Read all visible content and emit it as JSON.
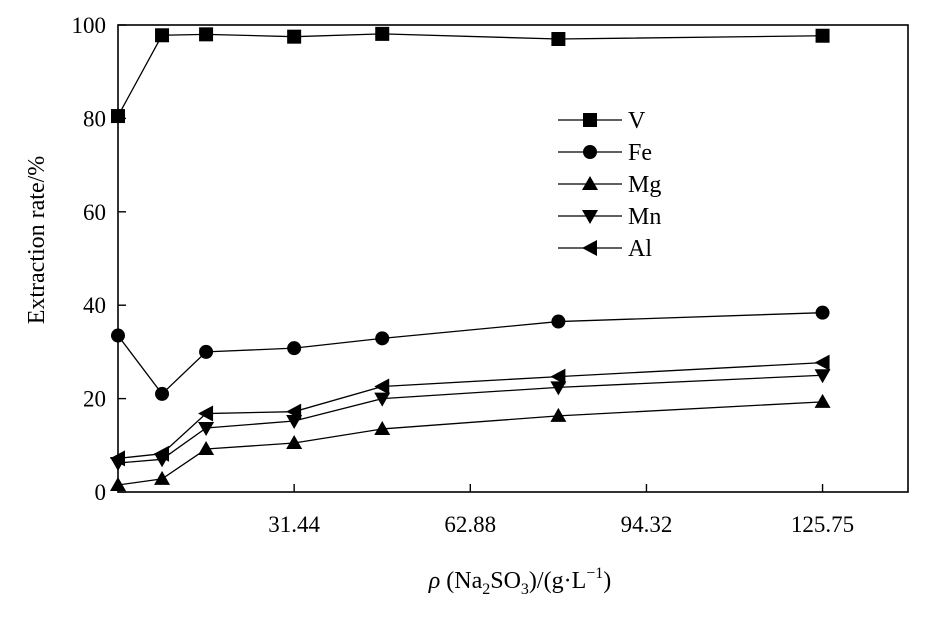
{
  "chart_data": {
    "type": "line",
    "x": [
      0,
      7.86,
      15.72,
      31.44,
      47.16,
      78.6,
      125.75
    ],
    "series": [
      {
        "name": "V",
        "marker": "square",
        "values": [
          80.5,
          97.8,
          98.0,
          97.5,
          98.1,
          97.0,
          97.7
        ]
      },
      {
        "name": "Fe",
        "marker": "circle",
        "values": [
          33.5,
          21.0,
          30.0,
          30.8,
          32.9,
          36.5,
          38.4
        ]
      },
      {
        "name": "Mg",
        "marker": "triangle-up",
        "values": [
          1.5,
          2.8,
          9.2,
          10.5,
          13.5,
          16.3,
          19.3
        ]
      },
      {
        "name": "Mn",
        "marker": "triangle-down",
        "values": [
          6.2,
          7.0,
          13.7,
          15.2,
          20.0,
          22.4,
          25.0
        ]
      },
      {
        "name": "Al",
        "marker": "triangle-left",
        "values": [
          7.2,
          8.2,
          16.8,
          17.2,
          22.6,
          24.7,
          27.7
        ]
      }
    ],
    "xticks": [
      31.44,
      62.88,
      94.32,
      125.75
    ],
    "xtick_labels": [
      "31.44",
      "62.88",
      "94.32",
      "125.75"
    ],
    "yticks": [
      0,
      20,
      40,
      60,
      80,
      100
    ],
    "ytick_labels": [
      "0",
      "20",
      "40",
      "60",
      "80",
      "100"
    ],
    "xlim": [
      0,
      141
    ],
    "ylim": [
      0,
      100
    ],
    "ylabel": "Extraction rate/%",
    "xlabel": {
      "rho": "ρ",
      "open": " (Na",
      "sub1": "2",
      "mid": "SO",
      "sub2": "3",
      "tail": ")/(g·L",
      "sup": "−1",
      "close": ")"
    },
    "legend_position": "upper-right",
    "grid": false
  }
}
